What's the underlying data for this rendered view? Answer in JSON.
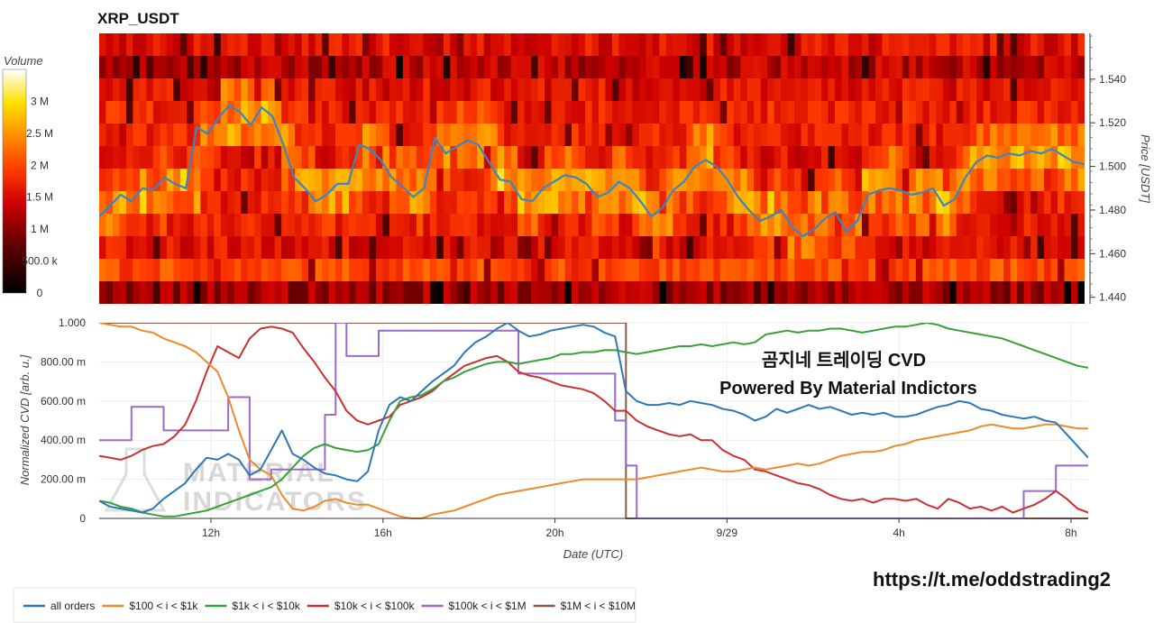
{
  "title": "XRP_USDT",
  "overlay": {
    "line1": "곰지네 트레이딩 CVD",
    "line2": "Powered By Material Indictors",
    "url": "https://t.me/oddstrading2",
    "watermark_line1": "MATERIAL",
    "watermark_line2": "INDICATORS"
  },
  "colorbar": {
    "title": "Volume",
    "ticks": [
      "3 M",
      "2.5 M",
      "2 M",
      "1.5 M",
      "1 M",
      "500.0 k",
      "0"
    ],
    "tick_values": [
      3000000,
      2500000,
      2000000,
      1500000,
      1000000,
      500000,
      0
    ],
    "max": 3500000
  },
  "colors": {
    "all_orders": "#2e78b5",
    "100_1k": "#ee8a27",
    "1k_10k": "#3a9f3a",
    "10k_100k": "#cc3030",
    "100k_1m": "#9a6bc9",
    "1m_10m": "#8b5a4a"
  },
  "chart_data": [
    {
      "type": "heatmap",
      "title": "XRP_USDT",
      "ylabel": "Price [USDT]",
      "yticks": [
        "1.540",
        "1.520",
        "1.500",
        "1.480",
        "1.460",
        "1.440"
      ],
      "ylim": [
        1.437,
        1.561
      ],
      "price_line": {
        "name": "price",
        "y": [
          1.477,
          1.482,
          1.487,
          1.484,
          1.49,
          1.489,
          1.495,
          1.492,
          1.49,
          1.518,
          1.515,
          1.522,
          1.528,
          1.525,
          1.519,
          1.527,
          1.523,
          1.51,
          1.495,
          1.49,
          1.484,
          1.487,
          1.492,
          1.492,
          1.51,
          1.508,
          1.503,
          1.495,
          1.491,
          1.486,
          1.49,
          1.513,
          1.506,
          1.509,
          1.512,
          1.51,
          1.502,
          1.494,
          1.493,
          1.485,
          1.484,
          1.49,
          1.493,
          1.496,
          1.495,
          1.492,
          1.486,
          1.488,
          1.493,
          1.49,
          1.484,
          1.477,
          1.481,
          1.489,
          1.493,
          1.5,
          1.503,
          1.5,
          1.494,
          1.486,
          1.48,
          1.475,
          1.477,
          1.48,
          1.472,
          1.468,
          1.471,
          1.476,
          1.479,
          1.47,
          1.475,
          1.487,
          1.489,
          1.49,
          1.489,
          1.487,
          1.488,
          1.49,
          1.482,
          1.485,
          1.495,
          1.502,
          1.505,
          1.504,
          1.506,
          1.505,
          1.507,
          1.506,
          1.508,
          1.505,
          1.502,
          1.501
        ]
      }
    },
    {
      "type": "line",
      "xlabel": "Date (UTC)",
      "ylabel": "Normalized CVD [arb. u.]",
      "xticks": [
        "12h",
        "16h",
        "20h",
        "9/29",
        "4h",
        "8h"
      ],
      "yticks": [
        "1.000",
        "800.00 m",
        "600.00 m",
        "400.00 m",
        "200.00 m",
        "0"
      ],
      "ylim": [
        0,
        1
      ],
      "x_hours": [
        9.4,
        9.65,
        9.9,
        10.15,
        10.4,
        10.65,
        10.9,
        11.15,
        11.4,
        11.65,
        11.9,
        12.15,
        12.4,
        12.65,
        12.9,
        13.15,
        13.4,
        13.65,
        13.9,
        14.15,
        14.4,
        14.65,
        14.9,
        15.15,
        15.4,
        15.65,
        15.9,
        16.15,
        16.4,
        16.65,
        16.9,
        17.15,
        17.4,
        17.65,
        17.9,
        18.15,
        18.4,
        18.65,
        18.9,
        19.15,
        19.4,
        19.65,
        19.9,
        20.15,
        20.4,
        20.65,
        20.9,
        21.15,
        21.4,
        21.65,
        21.9,
        22.15,
        22.4,
        22.65,
        22.9,
        23.15,
        23.4,
        23.65,
        23.9,
        24.15,
        24.4,
        24.65,
        24.9,
        25.15,
        25.4,
        25.65,
        25.9,
        26.15,
        26.4,
        26.65,
        26.9,
        27.15,
        27.4,
        27.65,
        27.9,
        28.15,
        28.4,
        28.65,
        28.9,
        29.15,
        29.4,
        29.65,
        29.9,
        30.15,
        30.4,
        30.65,
        30.9,
        31.15,
        31.4,
        31.65,
        31.9,
        32.15,
        32.4
      ],
      "series": [
        {
          "name": "all orders",
          "values": [
            0.09,
            0.06,
            0.05,
            0.04,
            0.03,
            0.05,
            0.1,
            0.14,
            0.18,
            0.25,
            0.31,
            0.3,
            0.33,
            0.3,
            0.22,
            0.25,
            0.35,
            0.45,
            0.33,
            0.3,
            0.26,
            0.23,
            0.22,
            0.2,
            0.19,
            0.24,
            0.45,
            0.58,
            0.62,
            0.6,
            0.65,
            0.7,
            0.74,
            0.78,
            0.85,
            0.9,
            0.93,
            0.97,
            1.0,
            0.96,
            0.93,
            0.94,
            0.96,
            0.97,
            0.98,
            0.99,
            0.98,
            0.95,
            0.93,
            0.65,
            0.6,
            0.58,
            0.58,
            0.59,
            0.58,
            0.6,
            0.59,
            0.58,
            0.56,
            0.55,
            0.53,
            0.5,
            0.52,
            0.56,
            0.54,
            0.56,
            0.58,
            0.56,
            0.57,
            0.55,
            0.53,
            0.54,
            0.53,
            0.54,
            0.52,
            0.52,
            0.53,
            0.55,
            0.57,
            0.58,
            0.6,
            0.59,
            0.56,
            0.55,
            0.53,
            0.52,
            0.51,
            0.52,
            0.5,
            0.49,
            0.43,
            0.37,
            0.31
          ]
        },
        {
          "name": "$100 < i < $1k",
          "values": [
            1.0,
            0.99,
            0.98,
            0.98,
            0.96,
            0.95,
            0.92,
            0.9,
            0.88,
            0.85,
            0.8,
            0.75,
            0.62,
            0.45,
            0.3,
            0.25,
            0.22,
            0.12,
            0.05,
            0.04,
            0.06,
            0.09,
            0.1,
            0.08,
            0.07,
            0.07,
            0.05,
            0.03,
            0.01,
            0.0,
            0.0,
            0.02,
            0.03,
            0.04,
            0.06,
            0.08,
            0.1,
            0.12,
            0.13,
            0.14,
            0.15,
            0.16,
            0.17,
            0.18,
            0.19,
            0.2,
            0.2,
            0.2,
            0.2,
            0.2,
            0.2,
            0.21,
            0.22,
            0.23,
            0.24,
            0.25,
            0.26,
            0.25,
            0.24,
            0.24,
            0.25,
            0.26,
            0.25,
            0.26,
            0.27,
            0.28,
            0.27,
            0.28,
            0.3,
            0.32,
            0.33,
            0.34,
            0.34,
            0.35,
            0.37,
            0.38,
            0.4,
            0.41,
            0.42,
            0.43,
            0.44,
            0.45,
            0.47,
            0.48,
            0.47,
            0.46,
            0.46,
            0.47,
            0.48,
            0.48,
            0.47,
            0.46,
            0.46
          ]
        },
        {
          "name": "$1k < i < $10k",
          "values": [
            0.09,
            0.08,
            0.06,
            0.05,
            0.03,
            0.02,
            0.01,
            0.01,
            0.02,
            0.03,
            0.04,
            0.06,
            0.08,
            0.1,
            0.12,
            0.14,
            0.16,
            0.2,
            0.26,
            0.32,
            0.36,
            0.38,
            0.36,
            0.35,
            0.34,
            0.35,
            0.38,
            0.5,
            0.6,
            0.62,
            0.63,
            0.66,
            0.7,
            0.72,
            0.75,
            0.77,
            0.79,
            0.8,
            0.8,
            0.79,
            0.8,
            0.81,
            0.82,
            0.84,
            0.84,
            0.85,
            0.85,
            0.86,
            0.86,
            0.85,
            0.84,
            0.85,
            0.86,
            0.87,
            0.88,
            0.88,
            0.89,
            0.88,
            0.89,
            0.9,
            0.89,
            0.9,
            0.94,
            0.95,
            0.96,
            0.95,
            0.96,
            0.96,
            0.97,
            0.97,
            0.96,
            0.95,
            0.96,
            0.97,
            0.98,
            0.98,
            0.99,
            1.0,
            0.99,
            0.97,
            0.96,
            0.95,
            0.94,
            0.93,
            0.92,
            0.9,
            0.88,
            0.86,
            0.84,
            0.82,
            0.8,
            0.78,
            0.77
          ]
        },
        {
          "name": "$10k < i < $100k",
          "values": [
            0.32,
            0.31,
            0.3,
            0.32,
            0.35,
            0.37,
            0.38,
            0.42,
            0.48,
            0.6,
            0.75,
            0.88,
            0.85,
            0.82,
            0.92,
            0.97,
            0.98,
            0.97,
            0.95,
            0.87,
            0.8,
            0.72,
            0.65,
            0.55,
            0.5,
            0.48,
            0.5,
            0.52,
            0.58,
            0.6,
            0.62,
            0.65,
            0.7,
            0.74,
            0.78,
            0.8,
            0.82,
            0.83,
            0.8,
            0.75,
            0.73,
            0.72,
            0.7,
            0.68,
            0.67,
            0.66,
            0.64,
            0.6,
            0.55,
            0.55,
            0.5,
            0.47,
            0.45,
            0.43,
            0.42,
            0.43,
            0.4,
            0.4,
            0.35,
            0.32,
            0.3,
            0.25,
            0.24,
            0.22,
            0.2,
            0.18,
            0.17,
            0.15,
            0.12,
            0.1,
            0.09,
            0.1,
            0.08,
            0.1,
            0.1,
            0.09,
            0.1,
            0.07,
            0.05,
            0.1,
            0.08,
            0.05,
            0.06,
            0.04,
            0.06,
            0.03,
            0.05,
            0.07,
            0.1,
            0.14,
            0.1,
            0.05,
            0.03
          ]
        },
        {
          "name": "$100k < i < $1M",
          "values": [
            0.4,
            0.4,
            0.4,
            0.57,
            0.57,
            0.57,
            0.45,
            0.45,
            0.45,
            0.45,
            0.45,
            0.45,
            0.62,
            0.62,
            0.2,
            0.2,
            0.25,
            0.25,
            0.25,
            0.25,
            0.25,
            0.53,
            1.0,
            0.83,
            0.83,
            0.83,
            0.96,
            0.96,
            0.96,
            0.96,
            0.96,
            0.96,
            0.96,
            0.96,
            0.96,
            0.96,
            0.96,
            0.96,
            0.96,
            0.74,
            0.74,
            0.74,
            0.74,
            0.74,
            0.74,
            0.74,
            0.74,
            0.74,
            0.5,
            0.27,
            0.0,
            0.0,
            0.0,
            0.0,
            0.0,
            0.0,
            0.0,
            0.0,
            0.0,
            0.0,
            0.0,
            0.0,
            0.0,
            0.0,
            0.0,
            0.0,
            0.0,
            0.0,
            0.0,
            0.0,
            0.0,
            0.0,
            0.0,
            0.0,
            0.0,
            0.0,
            0.0,
            0.0,
            0.0,
            0.0,
            0.0,
            0.0,
            0.0,
            0.0,
            0.0,
            0.0,
            0.14,
            0.14,
            0.14,
            0.27,
            0.27,
            0.27,
            0.27
          ]
        },
        {
          "name": "$1M < i < $10M",
          "values": [
            1.0,
            1.0,
            1.0,
            1.0,
            1.0,
            1.0,
            1.0,
            1.0,
            1.0,
            1.0,
            1.0,
            1.0,
            1.0,
            1.0,
            1.0,
            1.0,
            1.0,
            1.0,
            1.0,
            1.0,
            1.0,
            1.0,
            1.0,
            1.0,
            1.0,
            1.0,
            1.0,
            1.0,
            1.0,
            1.0,
            1.0,
            1.0,
            1.0,
            1.0,
            1.0,
            1.0,
            1.0,
            1.0,
            1.0,
            1.0,
            1.0,
            1.0,
            1.0,
            1.0,
            1.0,
            1.0,
            1.0,
            1.0,
            1.0,
            0.0,
            0.0,
            0.0,
            0.0,
            0.0,
            0.0,
            0.0,
            0.0,
            0.0,
            0.0,
            0.0,
            0.0,
            0.0,
            0.0,
            0.0,
            0.0,
            0.0,
            0.0,
            0.0,
            0.0,
            0.0,
            0.0,
            0.0,
            0.0,
            0.0,
            0.0,
            0.0,
            0.0,
            0.0,
            0.0,
            0.0,
            0.0,
            0.0,
            0.0,
            0.0,
            0.0,
            0.0,
            0.0,
            0.0,
            0.0,
            0.0,
            0.0,
            0.0,
            0.0
          ]
        }
      ]
    }
  ],
  "legend": [
    {
      "label": "all orders",
      "color_key": "all_orders"
    },
    {
      "label": "$100 < i < $1k",
      "color_key": "100_1k"
    },
    {
      "label": "$1k < i < $10k",
      "color_key": "1k_10k"
    },
    {
      "label": "$10k < i < $100k",
      "color_key": "10k_100k"
    },
    {
      "label": "$100k < i < $1M",
      "color_key": "100k_1m"
    },
    {
      "label": "$1M < i < $10M",
      "color_key": "1m_10m"
    }
  ]
}
